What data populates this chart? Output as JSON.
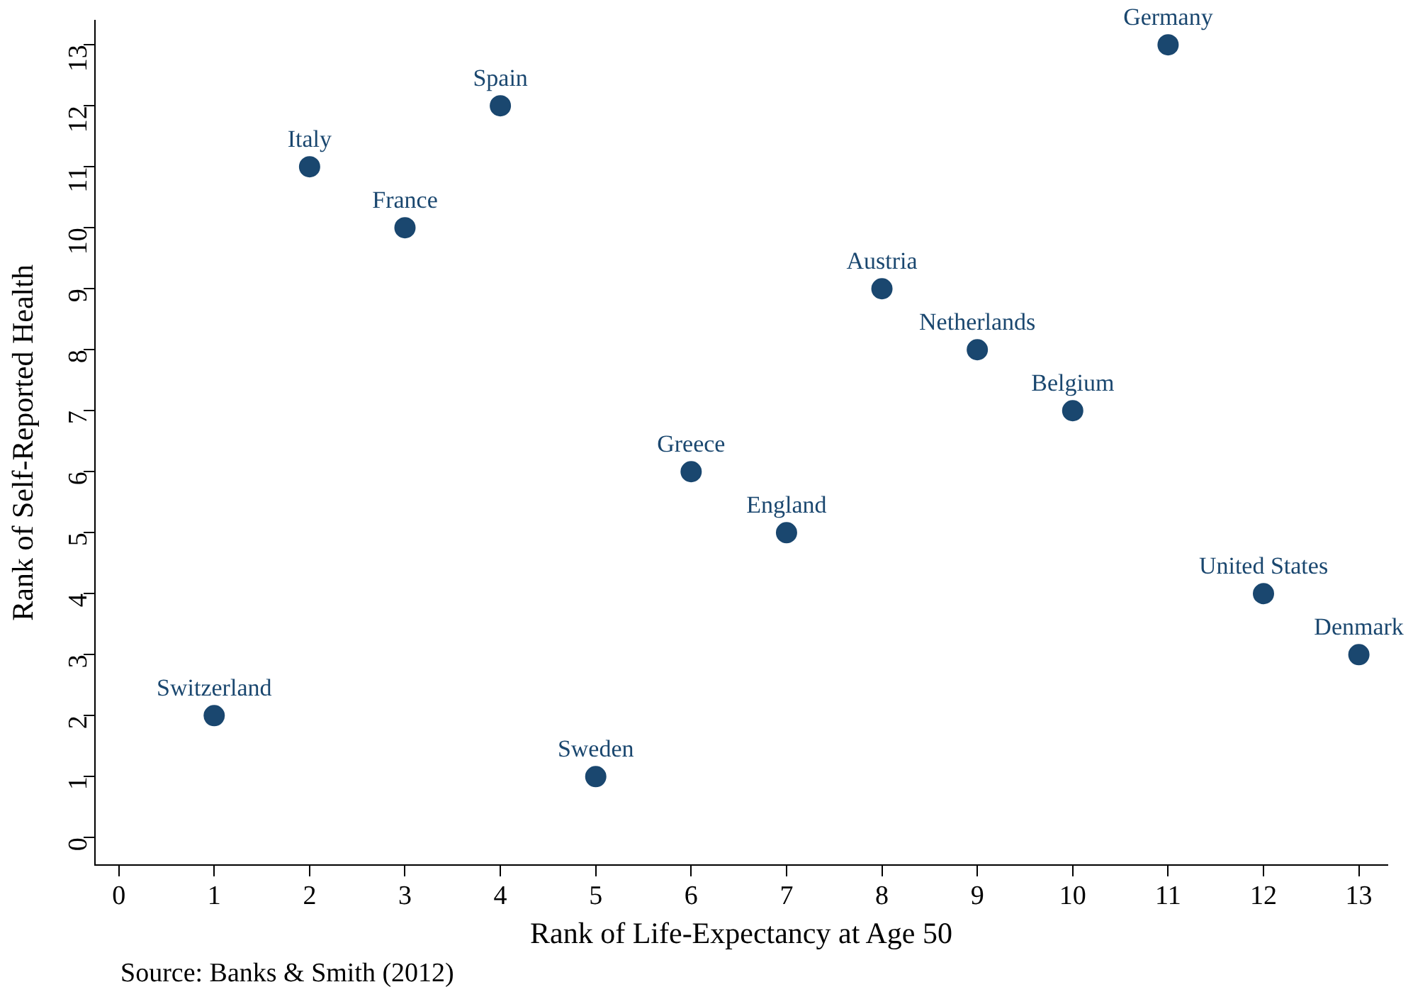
{
  "chart_data": {
    "type": "scatter",
    "xlabel": "Rank of Life-Expectancy at Age 50",
    "ylabel": "Rank of Self-Reported Health",
    "x": [
      1,
      2,
      3,
      4,
      5,
      6,
      7,
      8,
      9,
      10,
      11,
      12,
      13
    ],
    "series": [
      {
        "color": "#1a476f",
        "values": [
          2,
          11,
          10,
          12,
          1,
          6,
          5,
          9,
          8,
          7,
          13,
          4,
          3
        ]
      }
    ],
    "xlim": [
      -0.25,
      13.3
    ],
    "ylim": [
      -0.45,
      13.4
    ],
    "xticks": [
      0,
      1,
      2,
      3,
      4,
      5,
      6,
      7,
      8,
      9,
      10,
      11,
      12,
      13
    ],
    "yticks": [
      0,
      1,
      2,
      3,
      4,
      5,
      6,
      7,
      8,
      9,
      10,
      11,
      12,
      13
    ],
    "grid": false,
    "legend": false,
    "marker": "circle",
    "annotations": [
      {
        "text": "Switzerland",
        "x": 1,
        "y": 2
      },
      {
        "text": "Italy",
        "x": 2,
        "y": 11
      },
      {
        "text": "France",
        "x": 3,
        "y": 10
      },
      {
        "text": "Spain",
        "x": 4,
        "y": 12
      },
      {
        "text": "Sweden",
        "x": 5,
        "y": 1
      },
      {
        "text": "Greece",
        "x": 6,
        "y": 6
      },
      {
        "text": "England",
        "x": 7,
        "y": 5
      },
      {
        "text": "Austria",
        "x": 8,
        "y": 9
      },
      {
        "text": "Netherlands",
        "x": 9,
        "y": 8
      },
      {
        "text": "Belgium",
        "x": 10,
        "y": 7
      },
      {
        "text": "Germany",
        "x": 11,
        "y": 13
      },
      {
        "text": "United States",
        "x": 12,
        "y": 4
      },
      {
        "text": "Denmark",
        "x": 13,
        "y": 3
      },
      "Source: Banks & Smith (2012)"
    ]
  }
}
